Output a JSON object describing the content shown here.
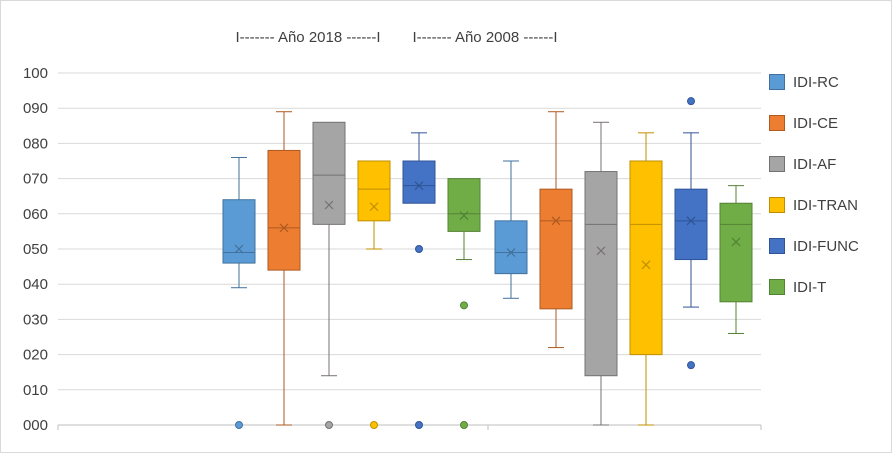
{
  "chart": {
    "background": "#FFFFFF",
    "border_color": "#D9D9D9",
    "grid_color": "#D9D9D9",
    "axis_color": "#BFBFBF",
    "text_color": "#404040"
  },
  "chart_data": {
    "type": "boxplot",
    "ylim": [
      0,
      100
    ],
    "grid": true,
    "legend_position": "right",
    "yticks": [
      {
        "value": 0,
        "label": "000"
      },
      {
        "value": 10,
        "label": "010"
      },
      {
        "value": 20,
        "label": "020"
      },
      {
        "value": 30,
        "label": "030"
      },
      {
        "value": 40,
        "label": "040"
      },
      {
        "value": 50,
        "label": "050"
      },
      {
        "value": 60,
        "label": "060"
      },
      {
        "value": 70,
        "label": "070"
      },
      {
        "value": 80,
        "label": "080"
      },
      {
        "value": 90,
        "label": "090"
      },
      {
        "value": 100,
        "label": "100"
      }
    ],
    "legend": [
      {
        "label": "IDI-RC",
        "color": "#5B9BD5",
        "border": "#41719C"
      },
      {
        "label": "IDI-CE",
        "color": "#ED7D31",
        "border": "#AE5A21"
      },
      {
        "label": "IDI-AF",
        "color": "#A5A5A5",
        "border": "#767171"
      },
      {
        "label": "IDI-TRAN",
        "color": "#FFC000",
        "border": "#BF8F00"
      },
      {
        "label": "IDI-FUNC",
        "color": "#4472C4",
        "border": "#2F5597"
      },
      {
        "label": "IDI-T",
        "color": "#70AD47",
        "border": "#548235"
      }
    ],
    "groups": [
      {
        "year": "2018",
        "title": "I------- Año 2018 ------I",
        "boxes": [
          {
            "series": "IDI-RC",
            "min": 39,
            "q1": 46,
            "median": 49,
            "q3": 64,
            "max": 76,
            "mean": 50,
            "outliers": [
              0
            ]
          },
          {
            "series": "IDI-CE",
            "min": 0,
            "q1": 44,
            "median": 56,
            "q3": 78,
            "max": 89,
            "mean": 56,
            "outliers": []
          },
          {
            "series": "IDI-AF",
            "min": 14,
            "q1": 57,
            "median": 71,
            "q3": 86,
            "max": 86,
            "mean": 62.5,
            "outliers": [
              0
            ]
          },
          {
            "series": "IDI-TRAN",
            "min": 50,
            "q1": 58,
            "median": 67,
            "q3": 75,
            "max": 75,
            "mean": 62,
            "outliers": [
              0
            ]
          },
          {
            "series": "IDI-FUNC",
            "min": 63,
            "q1": 63,
            "median": 68,
            "q3": 75,
            "max": 83,
            "mean": 68,
            "outliers": [
              50,
              0
            ]
          },
          {
            "series": "IDI-T",
            "min": 47,
            "q1": 55,
            "median": 60,
            "q3": 70,
            "max": 70,
            "mean": 59.5,
            "outliers": [
              34,
              0
            ]
          }
        ]
      },
      {
        "year": "2008",
        "title": "I------- Año 2008 ------I",
        "boxes": [
          {
            "series": "IDI-RC",
            "min": 36,
            "q1": 43,
            "median": 49,
            "q3": 58,
            "max": 75,
            "mean": 49,
            "outliers": []
          },
          {
            "series": "IDI-CE",
            "min": 22,
            "q1": 33,
            "median": 58,
            "q3": 67,
            "max": 89,
            "mean": 58,
            "outliers": []
          },
          {
            "series": "IDI-AF",
            "min": 0,
            "q1": 14,
            "median": 57,
            "q3": 72,
            "max": 86,
            "mean": 49.5,
            "outliers": []
          },
          {
            "series": "IDI-TRAN",
            "min": 0,
            "q1": 20,
            "median": 57,
            "q3": 75,
            "max": 83,
            "mean": 45.5,
            "outliers": []
          },
          {
            "series": "IDI-FUNC",
            "min": 33.5,
            "q1": 47,
            "median": 58,
            "q3": 67,
            "max": 83,
            "mean": 58,
            "outliers": [
              92,
              17
            ]
          },
          {
            "series": "IDI-T",
            "min": 26,
            "q1": 35,
            "median": 57,
            "q3": 63,
            "max": 68,
            "mean": 52,
            "outliers": []
          }
        ]
      }
    ]
  }
}
